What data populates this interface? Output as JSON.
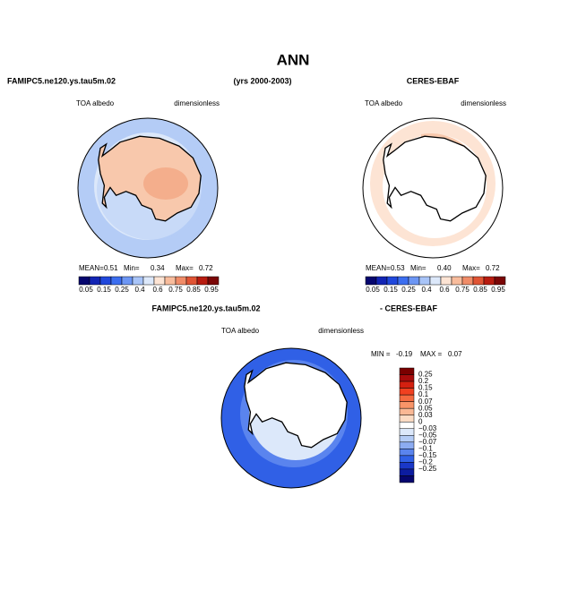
{
  "title": "ANN",
  "panels": [
    {
      "case": "FAMIPC5.ne120.ys.tau5m.02",
      "period": "(yrs 2000-2003)",
      "variable": "TOA albedo",
      "units": "dimensionless",
      "stats": [
        [
          "MEAN=",
          "0.51"
        ],
        [
          "Min=",
          "0.34"
        ],
        [
          "Max=",
          "0.72"
        ]
      ],
      "colorbar": {
        "colors": [
          "#06066e",
          "#1224b4",
          "#2048dc",
          "#3c6ef0",
          "#6c96f4",
          "#a8c4f8",
          "#dce8fa",
          "#fde4d4",
          "#f8bc9c",
          "#f08c68",
          "#e05434",
          "#b81c10",
          "#7a0606"
        ],
        "labels": [
          "0.05",
          "0.15",
          "0.25",
          "0.4",
          "0.6",
          "0.75",
          "0.85",
          "0.95"
        ]
      }
    },
    {
      "case": "CERES-EBAF",
      "variable": "TOA albedo",
      "units": "dimensionless",
      "stats": [
        [
          "MEAN=",
          "0.53"
        ],
        [
          "Min=",
          "0.40"
        ],
        [
          "Max=",
          "0.72"
        ]
      ],
      "colorbar": {
        "colors": [
          "#06066e",
          "#1224b4",
          "#2048dc",
          "#3c6ef0",
          "#6c96f4",
          "#a8c4f8",
          "#dce8fa",
          "#fde4d4",
          "#f8bc9c",
          "#f08c68",
          "#e05434",
          "#b81c10",
          "#7a0606"
        ],
        "labels": [
          "0.05",
          "0.15",
          "0.25",
          "0.4",
          "0.6",
          "0.75",
          "0.85",
          "0.95"
        ]
      }
    },
    {
      "case": "FAMIPC5.ne120.ys.tau5m.02",
      "subtract": "- CERES-EBAF",
      "variable": "TOA albedo",
      "units": "dimensionless",
      "stats": [
        [
          "MIN =",
          "-0.19"
        ],
        [
          "MAX =",
          "0.07"
        ]
      ],
      "colorbar": {
        "colors": [
          "#7a0000",
          "#a80c0c",
          "#d42010",
          "#f04020",
          "#f46a40",
          "#f89468",
          "#fab894",
          "#fcdcc4",
          "#ffffff",
          "#dce8fa",
          "#b4ccf6",
          "#8cacf2",
          "#5a84ee",
          "#3060e6",
          "#1a38c8",
          "#0c1ca0",
          "#06066e"
        ],
        "labels": [
          "0.25",
          "0.2",
          "0.15",
          "0.1",
          "0.07",
          "0.05",
          "0.03",
          "0",
          "−0.03",
          "−0.05",
          "−0.07",
          "−0.1",
          "−0.15",
          "−0.2",
          "−0.25"
        ]
      }
    }
  ]
}
